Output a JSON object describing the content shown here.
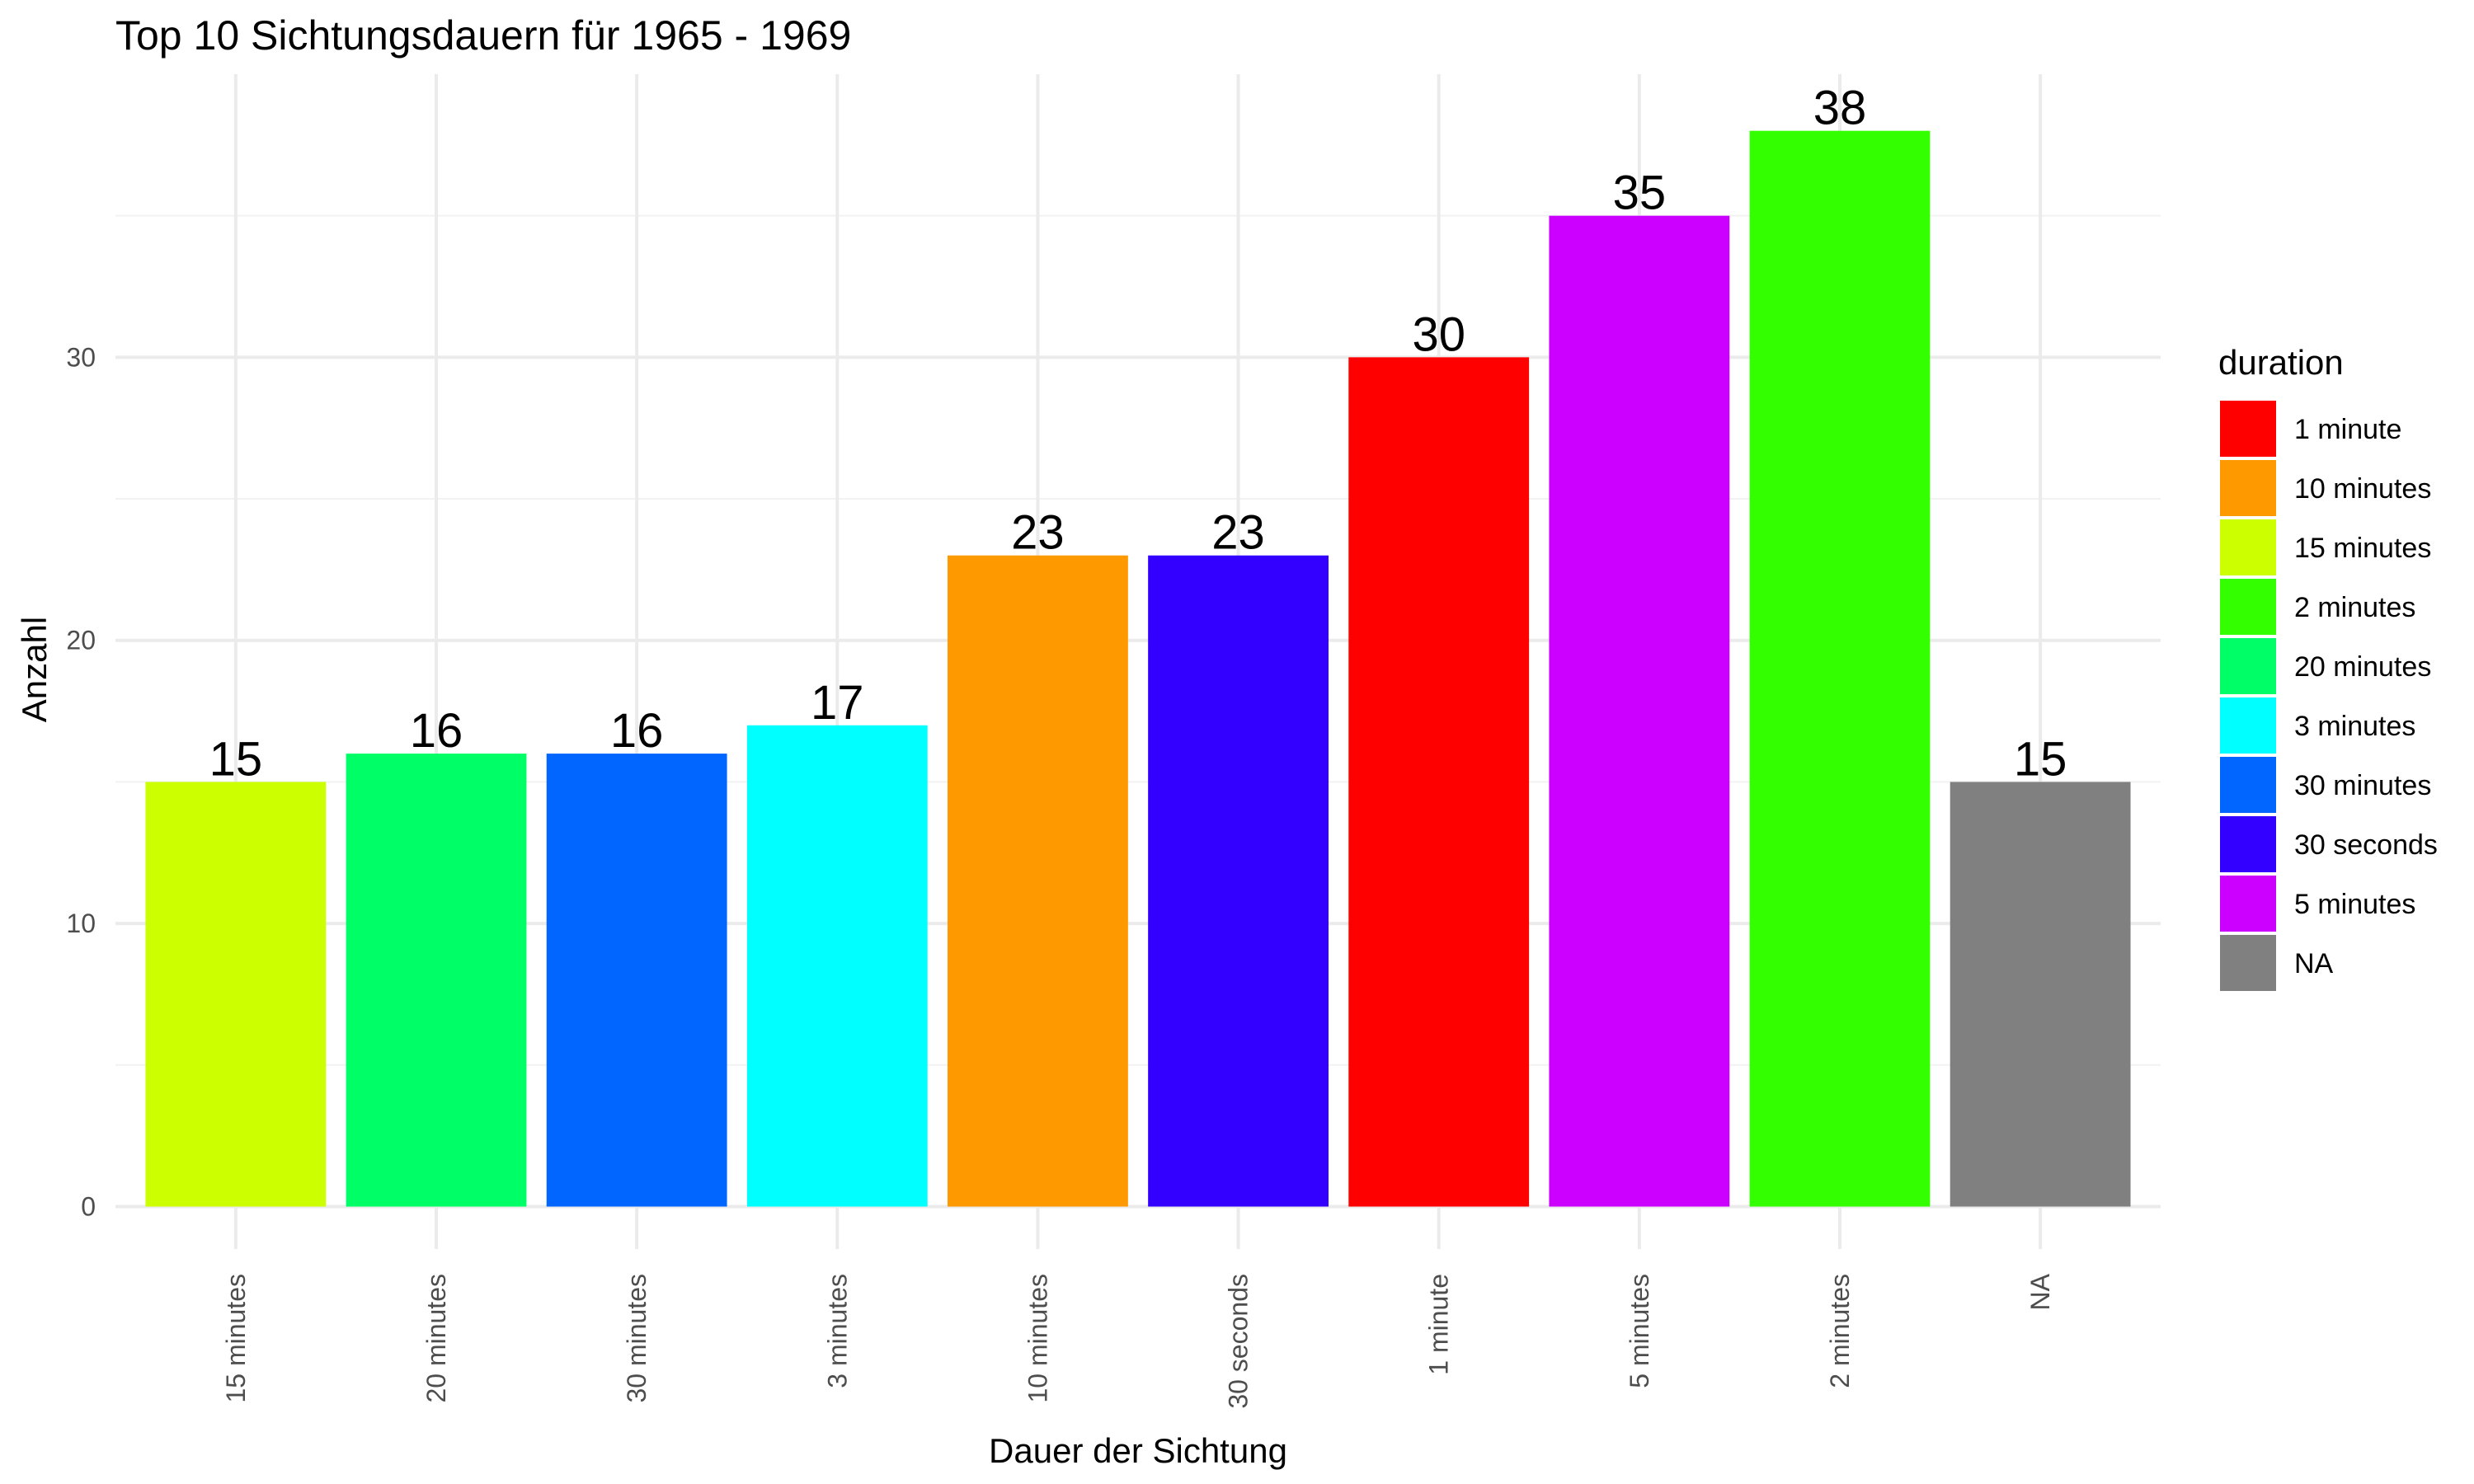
{
  "chart_data": {
    "type": "bar",
    "title": "Top 10 Sichtungsdauern für 1965 - 1969",
    "xlabel": "Dauer der Sichtung",
    "ylabel": "Anzahl",
    "categories": [
      "15 minutes",
      "20 minutes",
      "30 minutes",
      "3 minutes",
      "10 minutes",
      "30 seconds",
      "1 minute",
      "5 minutes",
      "2 minutes",
      "NA"
    ],
    "values": [
      15,
      16,
      16,
      17,
      23,
      23,
      30,
      35,
      38,
      15
    ],
    "ylim": [
      -1.5,
      40
    ],
    "yticks": [
      0,
      10,
      20,
      30
    ],
    "grid": true,
    "bar_colors": [
      "#CCFF00",
      "#00FF66",
      "#0066FF",
      "#00FFFF",
      "#FF9900",
      "#3300FF",
      "#FF0000",
      "#CC00FF",
      "#33FF00",
      "#808080"
    ],
    "legend": {
      "title": "duration",
      "placement": "right",
      "entries": [
        {
          "label": "1 minute",
          "color": "#FF0000"
        },
        {
          "label": "10 minutes",
          "color": "#FF9900"
        },
        {
          "label": "15 minutes",
          "color": "#CCFF00"
        },
        {
          "label": "2 minutes",
          "color": "#33FF00"
        },
        {
          "label": "20 minutes",
          "color": "#00FF66"
        },
        {
          "label": "3 minutes",
          "color": "#00FFFF"
        },
        {
          "label": "30 minutes",
          "color": "#0066FF"
        },
        {
          "label": "30 seconds",
          "color": "#3300FF"
        },
        {
          "label": "5 minutes",
          "color": "#CC00FF"
        },
        {
          "label": "NA",
          "color": "#808080"
        }
      ]
    }
  }
}
